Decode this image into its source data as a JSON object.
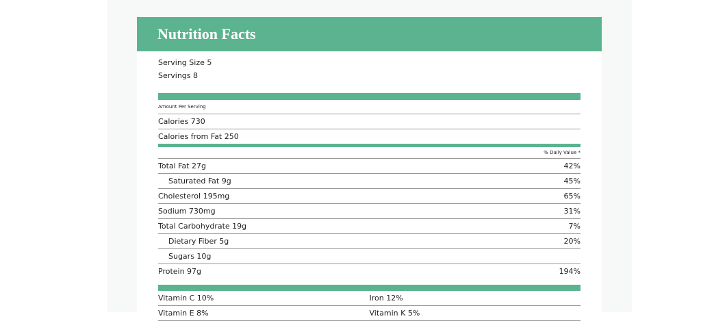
{
  "header": {
    "title": "Nutrition Facts"
  },
  "serving": {
    "size": "Serving Size 5",
    "servings": "Servings 8"
  },
  "amount_per_serving": "Amount Per Serving",
  "calories": "Calories 730",
  "calories_from_fat": "Calories from Fat 250",
  "daily_value_heading": "% Daily Value *",
  "nutrients": [
    {
      "label": "Total Fat 27g",
      "daily_value": "42%"
    },
    {
      "label": "Saturated Fat 9g",
      "daily_value": "45%"
    },
    {
      "label": "Cholesterol 195mg",
      "daily_value": "65%"
    },
    {
      "label": "Sodium 730mg",
      "daily_value": "31%"
    },
    {
      "label": "Total Carbohydrate 19g",
      "daily_value": "7%"
    },
    {
      "label": "Dietary Fiber 5g",
      "daily_value": "20%"
    },
    {
      "label": "Sugars 10g"
    },
    {
      "label": "Protein 97g",
      "daily_value": "194%"
    }
  ],
  "vitamins": [
    [
      "Vitamin C 10%",
      "Iron 12%"
    ],
    [
      "Vitamin E 8%",
      "Vitamin K 5%"
    ]
  ]
}
